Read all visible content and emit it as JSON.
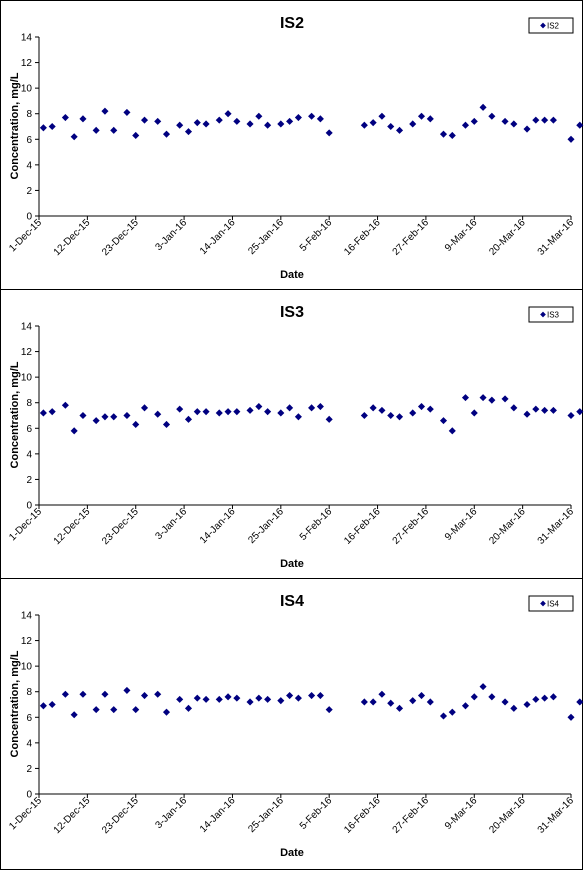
{
  "chart_data": [
    {
      "type": "scatter",
      "title": "IS2",
      "xlabel": "Date",
      "ylabel": "Concentration, mg/L",
      "ylim": [
        0,
        14
      ],
      "yticks": [
        0,
        2,
        4,
        6,
        8,
        10,
        12,
        14
      ],
      "xlim": [
        "2015-12-01",
        "2016-03-31"
      ],
      "xticks": [
        "1-Dec-15",
        "12-Dec-15",
        "23-Dec-15",
        "3-Jan-16",
        "14-Jan-16",
        "25-Jan-16",
        "5-Feb-16",
        "16-Feb-16",
        "27-Feb-16",
        "9-Mar-16",
        "20-Mar-16",
        "31-Mar-16"
      ],
      "grid": false,
      "legend": "top-right",
      "marker_color": "#000080",
      "series": [
        {
          "name": "IS2",
          "points": [
            [
              "2015-12-02",
              6.9
            ],
            [
              "2015-12-04",
              7.0
            ],
            [
              "2015-12-07",
              7.7
            ],
            [
              "2015-12-09",
              6.2
            ],
            [
              "2015-12-11",
              7.6
            ],
            [
              "2015-12-14",
              6.7
            ],
            [
              "2015-12-16",
              8.2
            ],
            [
              "2015-12-18",
              6.7
            ],
            [
              "2015-12-21",
              8.1
            ],
            [
              "2015-12-23",
              6.3
            ],
            [
              "2015-12-25",
              7.5
            ],
            [
              "2015-12-28",
              7.4
            ],
            [
              "2015-12-30",
              6.4
            ],
            [
              "2016-01-02",
              7.1
            ],
            [
              "2016-01-04",
              6.6
            ],
            [
              "2016-01-06",
              7.3
            ],
            [
              "2016-01-08",
              7.2
            ],
            [
              "2016-01-11",
              7.5
            ],
            [
              "2016-01-13",
              8.0
            ],
            [
              "2016-01-15",
              7.4
            ],
            [
              "2016-01-18",
              7.2
            ],
            [
              "2016-01-20",
              7.8
            ],
            [
              "2016-01-22",
              7.1
            ],
            [
              "2016-01-25",
              7.2
            ],
            [
              "2016-01-27",
              7.4
            ],
            [
              "2016-01-29",
              7.7
            ],
            [
              "2016-02-01",
              7.8
            ],
            [
              "2016-02-03",
              7.6
            ],
            [
              "2016-02-05",
              6.5
            ],
            [
              "2016-02-13",
              7.1
            ],
            [
              "2016-02-15",
              7.3
            ],
            [
              "2016-02-17",
              7.8
            ],
            [
              "2016-02-19",
              7.0
            ],
            [
              "2016-02-21",
              6.7
            ],
            [
              "2016-02-24",
              7.2
            ],
            [
              "2016-02-26",
              7.8
            ],
            [
              "2016-02-28",
              7.6
            ],
            [
              "2016-03-02",
              6.4
            ],
            [
              "2016-03-04",
              6.3
            ],
            [
              "2016-03-07",
              7.1
            ],
            [
              "2016-03-09",
              7.4
            ],
            [
              "2016-03-11",
              8.5
            ],
            [
              "2016-03-13",
              7.8
            ],
            [
              "2016-03-16",
              7.4
            ],
            [
              "2016-03-18",
              7.2
            ],
            [
              "2016-03-21",
              6.8
            ],
            [
              "2016-03-23",
              7.5
            ],
            [
              "2016-03-25",
              7.5
            ],
            [
              "2016-03-27",
              7.5
            ],
            [
              "2016-03-31",
              6.0
            ],
            [
              "2016-04-02",
              7.1
            ]
          ]
        }
      ]
    },
    {
      "type": "scatter",
      "title": "IS3",
      "xlabel": "Date",
      "ylabel": "Concentration, mg/L",
      "ylim": [
        0,
        14
      ],
      "yticks": [
        0,
        2,
        4,
        6,
        8,
        10,
        12,
        14
      ],
      "xlim": [
        "2015-12-01",
        "2016-03-31"
      ],
      "xticks": [
        "1-Dec-15",
        "12-Dec-15",
        "23-Dec-15",
        "3-Jan-16",
        "14-Jan-16",
        "25-Jan-16",
        "5-Feb-16",
        "16-Feb-16",
        "27-Feb-16",
        "9-Mar-16",
        "20-Mar-16",
        "31-Mar-16"
      ],
      "grid": false,
      "legend": "top-right",
      "marker_color": "#000080",
      "series": [
        {
          "name": "IS3",
          "points": [
            [
              "2015-12-02",
              7.2
            ],
            [
              "2015-12-04",
              7.3
            ],
            [
              "2015-12-07",
              7.8
            ],
            [
              "2015-12-09",
              5.8
            ],
            [
              "2015-12-11",
              7.0
            ],
            [
              "2015-12-14",
              6.6
            ],
            [
              "2015-12-16",
              6.9
            ],
            [
              "2015-12-18",
              6.9
            ],
            [
              "2015-12-21",
              7.0
            ],
            [
              "2015-12-23",
              6.3
            ],
            [
              "2015-12-25",
              7.6
            ],
            [
              "2015-12-28",
              7.1
            ],
            [
              "2015-12-30",
              6.3
            ],
            [
              "2016-01-02",
              7.5
            ],
            [
              "2016-01-04",
              6.7
            ],
            [
              "2016-01-06",
              7.3
            ],
            [
              "2016-01-08",
              7.3
            ],
            [
              "2016-01-11",
              7.2
            ],
            [
              "2016-01-13",
              7.3
            ],
            [
              "2016-01-15",
              7.3
            ],
            [
              "2016-01-18",
              7.4
            ],
            [
              "2016-01-20",
              7.7
            ],
            [
              "2016-01-22",
              7.3
            ],
            [
              "2016-01-25",
              7.2
            ],
            [
              "2016-01-27",
              7.6
            ],
            [
              "2016-01-29",
              6.9
            ],
            [
              "2016-02-01",
              7.6
            ],
            [
              "2016-02-03",
              7.7
            ],
            [
              "2016-02-05",
              6.7
            ],
            [
              "2016-02-13",
              7.0
            ],
            [
              "2016-02-15",
              7.6
            ],
            [
              "2016-02-17",
              7.4
            ],
            [
              "2016-02-19",
              7.0
            ],
            [
              "2016-02-21",
              6.9
            ],
            [
              "2016-02-24",
              7.2
            ],
            [
              "2016-02-26",
              7.7
            ],
            [
              "2016-02-28",
              7.5
            ],
            [
              "2016-03-02",
              6.6
            ],
            [
              "2016-03-04",
              5.8
            ],
            [
              "2016-03-07",
              8.4
            ],
            [
              "2016-03-09",
              7.2
            ],
            [
              "2016-03-11",
              8.4
            ],
            [
              "2016-03-13",
              8.2
            ],
            [
              "2016-03-16",
              8.3
            ],
            [
              "2016-03-18",
              7.6
            ],
            [
              "2016-03-21",
              7.1
            ],
            [
              "2016-03-23",
              7.5
            ],
            [
              "2016-03-25",
              7.4
            ],
            [
              "2016-03-27",
              7.4
            ],
            [
              "2016-03-31",
              7.0
            ],
            [
              "2016-04-02",
              7.3
            ]
          ]
        }
      ]
    },
    {
      "type": "scatter",
      "title": "IS4",
      "xlabel": "Date",
      "ylabel": "Concentration, mg/L",
      "ylim": [
        0,
        14
      ],
      "yticks": [
        0,
        2,
        4,
        6,
        8,
        10,
        12,
        14
      ],
      "xlim": [
        "2015-12-01",
        "2016-03-31"
      ],
      "xticks": [
        "1-Dec-15",
        "12-Dec-15",
        "23-Dec-15",
        "3-Jan-16",
        "14-Jan-16",
        "25-Jan-16",
        "5-Feb-16",
        "16-Feb-16",
        "27-Feb-16",
        "9-Mar-16",
        "20-Mar-16",
        "31-Mar-16"
      ],
      "grid": false,
      "legend": "top-right",
      "marker_color": "#000080",
      "series": [
        {
          "name": "IS4",
          "points": [
            [
              "2015-12-02",
              6.9
            ],
            [
              "2015-12-04",
              7.0
            ],
            [
              "2015-12-07",
              7.8
            ],
            [
              "2015-12-09",
              6.2
            ],
            [
              "2015-12-11",
              7.8
            ],
            [
              "2015-12-14",
              6.6
            ],
            [
              "2015-12-16",
              7.8
            ],
            [
              "2015-12-18",
              6.6
            ],
            [
              "2015-12-21",
              8.1
            ],
            [
              "2015-12-23",
              6.6
            ],
            [
              "2015-12-25",
              7.7
            ],
            [
              "2015-12-28",
              7.8
            ],
            [
              "2015-12-30",
              6.4
            ],
            [
              "2016-01-02",
              7.4
            ],
            [
              "2016-01-04",
              6.7
            ],
            [
              "2016-01-06",
              7.5
            ],
            [
              "2016-01-08",
              7.4
            ],
            [
              "2016-01-11",
              7.4
            ],
            [
              "2016-01-13",
              7.6
            ],
            [
              "2016-01-15",
              7.5
            ],
            [
              "2016-01-18",
              7.2
            ],
            [
              "2016-01-20",
              7.5
            ],
            [
              "2016-01-22",
              7.4
            ],
            [
              "2016-01-25",
              7.3
            ],
            [
              "2016-01-27",
              7.7
            ],
            [
              "2016-01-29",
              7.5
            ],
            [
              "2016-02-01",
              7.7
            ],
            [
              "2016-02-03",
              7.7
            ],
            [
              "2016-02-05",
              6.6
            ],
            [
              "2016-02-13",
              7.2
            ],
            [
              "2016-02-15",
              7.2
            ],
            [
              "2016-02-17",
              7.8
            ],
            [
              "2016-02-19",
              7.1
            ],
            [
              "2016-02-21",
              6.7
            ],
            [
              "2016-02-24",
              7.3
            ],
            [
              "2016-02-26",
              7.7
            ],
            [
              "2016-02-28",
              7.2
            ],
            [
              "2016-03-02",
              6.1
            ],
            [
              "2016-03-04",
              6.4
            ],
            [
              "2016-03-07",
              6.9
            ],
            [
              "2016-03-09",
              7.6
            ],
            [
              "2016-03-11",
              8.4
            ],
            [
              "2016-03-13",
              7.6
            ],
            [
              "2016-03-16",
              7.2
            ],
            [
              "2016-03-18",
              6.7
            ],
            [
              "2016-03-21",
              7.0
            ],
            [
              "2016-03-23",
              7.4
            ],
            [
              "2016-03-25",
              7.5
            ],
            [
              "2016-03-27",
              7.6
            ],
            [
              "2016-03-31",
              6.0
            ],
            [
              "2016-04-02",
              7.2
            ]
          ]
        }
      ]
    }
  ]
}
